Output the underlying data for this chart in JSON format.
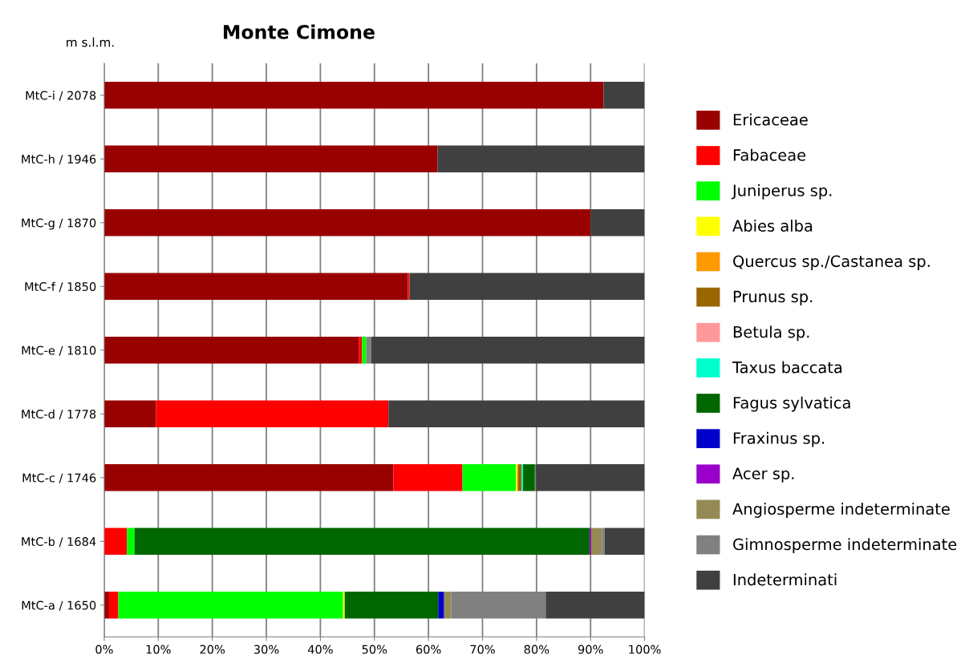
{
  "chart_data": {
    "type": "bar",
    "orientation": "horizontal",
    "stacked": true,
    "title": "Monte Cimone",
    "ylabel": "m s.l.m.",
    "categories": [
      "MtC-i / 2078",
      "MtC-h / 1946",
      "MtC-g / 1870",
      "MtC-f / 1850",
      "MtC-e / 1810",
      "MtC-d / 1778",
      "MtC-c / 1746",
      "MtC-b / 1684",
      "MtC-a / 1650"
    ],
    "series": [
      {
        "name": "Ericaceae",
        "color": "#990000",
        "values": [
          92.4,
          61.7,
          90.0,
          56.2,
          47.1,
          9.6,
          53.5,
          null,
          0.9
        ]
      },
      {
        "name": "Fabaceae",
        "color": "#ff0000",
        "values": [
          null,
          null,
          null,
          0.3,
          0.6,
          43.0,
          12.8,
          4.2,
          1.7
        ]
      },
      {
        "name": "Juniperus sp.",
        "color": "#00ff00",
        "values": [
          null,
          null,
          null,
          null,
          0.8,
          null,
          9.9,
          1.4,
          41.6
        ]
      },
      {
        "name": "Abies alba",
        "color": "#ffff00",
        "values": [
          null,
          null,
          null,
          null,
          null,
          null,
          0.2,
          null,
          0.3
        ]
      },
      {
        "name": "Quercus sp./Castanea sp.",
        "color": "#ff9900",
        "values": [
          null,
          null,
          null,
          null,
          null,
          null,
          0.2,
          null,
          null
        ]
      },
      {
        "name": "Prunus sp.",
        "color": "#996600",
        "values": [
          null,
          null,
          null,
          null,
          null,
          null,
          0.6,
          null,
          null
        ]
      },
      {
        "name": "Betula sp.",
        "color": "#ff9999",
        "values": [
          null,
          null,
          null,
          null,
          null,
          null,
          null,
          null,
          null
        ]
      },
      {
        "name": "Taxus baccata",
        "color": "#00ffcc",
        "values": [
          null,
          null,
          null,
          null,
          null,
          null,
          0.3,
          null,
          null
        ]
      },
      {
        "name": "Fagus sylvatica",
        "color": "#006600",
        "values": [
          null,
          null,
          null,
          null,
          null,
          null,
          2.2,
          84.2,
          17.3
        ]
      },
      {
        "name": "Fraxinus sp.",
        "color": "#0000cc",
        "values": [
          null,
          null,
          null,
          null,
          null,
          null,
          null,
          null,
          1.1
        ]
      },
      {
        "name": "Acer sp.",
        "color": "#9900cc",
        "values": [
          null,
          null,
          null,
          null,
          null,
          null,
          null,
          0.3,
          null
        ]
      },
      {
        "name": "Angiosperme indeterminate",
        "color": "#948a54",
        "values": [
          null,
          null,
          null,
          null,
          null,
          null,
          null,
          2.0,
          1.3
        ]
      },
      {
        "name": "Gimnosperme indeterminate",
        "color": "#808080",
        "values": [
          null,
          null,
          null,
          null,
          0.9,
          null,
          0.2,
          0.5,
          17.5
        ]
      },
      {
        "name": "Indeterminati",
        "color": "#404040",
        "values": [
          7.6,
          38.3,
          10.0,
          43.5,
          50.6,
          47.4,
          20.1,
          7.4,
          18.3
        ]
      }
    ],
    "xlim": [
      0,
      100
    ],
    "xticks": [
      {
        "value": 0,
        "label": "0%"
      },
      {
        "value": 10,
        "label": "10%"
      },
      {
        "value": 20,
        "label": "20%"
      },
      {
        "value": 30,
        "label": "30%"
      },
      {
        "value": 40,
        "label": "40%"
      },
      {
        "value": 50,
        "label": "50%"
      },
      {
        "value": 60,
        "label": "60%"
      },
      {
        "value": 70,
        "label": "70%"
      },
      {
        "value": 80,
        "label": "80%"
      },
      {
        "value": 90,
        "label": "90%"
      },
      {
        "value": 100,
        "label": "100%"
      }
    ],
    "grid": "x",
    "legend": "right"
  }
}
